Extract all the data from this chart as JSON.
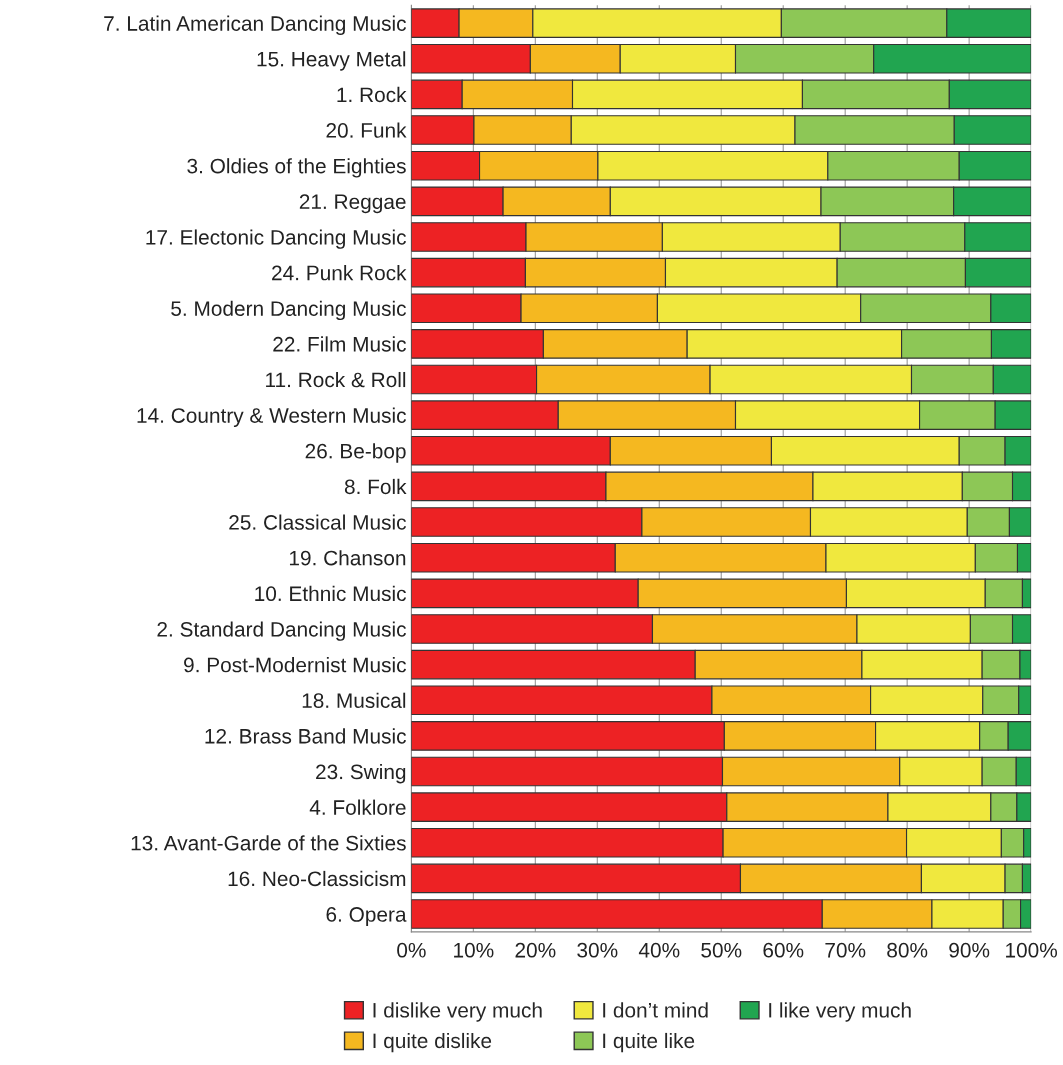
{
  "chart_data": {
    "type": "bar",
    "orientation": "horizontal",
    "stacked": true,
    "categories": [
      "7. Latin American Dancing Music",
      "15. Heavy Metal",
      "1. Rock",
      "20. Funk",
      "3. Oldies of the Eighties",
      "21. Reggae",
      "17. Electonic Dancing Music",
      "24. Punk Rock",
      "5. Modern Dancing Music",
      "22. Film Music",
      "11. Rock & Roll",
      "14. Country & Western Music",
      "26. Be-bop",
      "8. Folk",
      "25. Classical Music",
      "19. Chanson",
      "10. Ethnic Music",
      "2. Standard Dancing Music",
      "9. Post-Modernist Music",
      "18. Musical",
      "12. Brass Band Music",
      "23. Swing",
      "4. Folklore",
      "13. Avant-Garde of the Sixties",
      "16. Neo-Classicism",
      "6. Opera"
    ],
    "series": [
      {
        "name": "I dislike very much",
        "color": "#ed2224",
        "values": [
          7.7,
          19.2,
          8.2,
          10.1,
          11.0,
          14.8,
          18.5,
          18.4,
          17.7,
          21.3,
          20.2,
          23.7,
          32.1,
          31.4,
          37.2,
          32.9,
          36.6,
          38.9,
          45.8,
          48.5,
          50.5,
          50.2,
          50.9,
          50.3,
          53.1,
          66.3
        ]
      },
      {
        "name": "I quite dislike",
        "color": "#f5b820",
        "values": [
          11.9,
          14.5,
          17.8,
          15.7,
          19.1,
          17.3,
          22.0,
          22.6,
          22.0,
          23.2,
          28.0,
          28.6,
          26.0,
          33.4,
          27.2,
          34.0,
          33.6,
          33.0,
          26.9,
          25.6,
          24.4,
          28.6,
          26.0,
          29.6,
          29.2,
          17.7
        ]
      },
      {
        "name": "I don’t mind",
        "color": "#f0e83e",
        "values": [
          40.1,
          18.6,
          37.1,
          36.1,
          37.1,
          34.0,
          28.7,
          27.7,
          32.8,
          34.6,
          32.5,
          29.7,
          30.3,
          24.1,
          25.3,
          24.1,
          22.4,
          18.3,
          19.4,
          18.1,
          16.8,
          13.3,
          16.6,
          15.3,
          13.5,
          11.5
        ]
      },
      {
        "name": "I quite like",
        "color": "#8dc756",
        "values": [
          26.7,
          22.3,
          23.7,
          25.7,
          21.2,
          21.4,
          20.1,
          20.7,
          21.0,
          14.5,
          13.2,
          12.2,
          7.4,
          8.1,
          6.8,
          6.8,
          6.0,
          6.8,
          6.1,
          5.8,
          4.6,
          5.5,
          4.2,
          3.6,
          2.8,
          2.8
        ]
      },
      {
        "name": "I like very much",
        "color": "#21a550",
        "values": [
          13.6,
          25.4,
          13.2,
          12.4,
          11.6,
          12.5,
          10.7,
          10.6,
          6.5,
          6.4,
          6.1,
          5.8,
          4.2,
          3.0,
          3.5,
          2.2,
          1.4,
          3.0,
          1.8,
          2.0,
          3.7,
          2.4,
          2.3,
          1.2,
          1.4,
          1.7
        ]
      }
    ],
    "xlim": [
      0,
      100
    ],
    "xticks": [
      {
        "value": 0,
        "label": "0%"
      },
      {
        "value": 10,
        "label": "10%"
      },
      {
        "value": 20,
        "label": "20%"
      },
      {
        "value": 30,
        "label": "30%"
      },
      {
        "value": 40,
        "label": "40%"
      },
      {
        "value": 50,
        "label": "50%"
      },
      {
        "value": 60,
        "label": "60%"
      },
      {
        "value": 70,
        "label": "70%"
      },
      {
        "value": 80,
        "label": "80%"
      },
      {
        "value": 90,
        "label": "90%"
      },
      {
        "value": 100,
        "label": "100%"
      }
    ],
    "grid": "x",
    "legend": "bottom"
  }
}
